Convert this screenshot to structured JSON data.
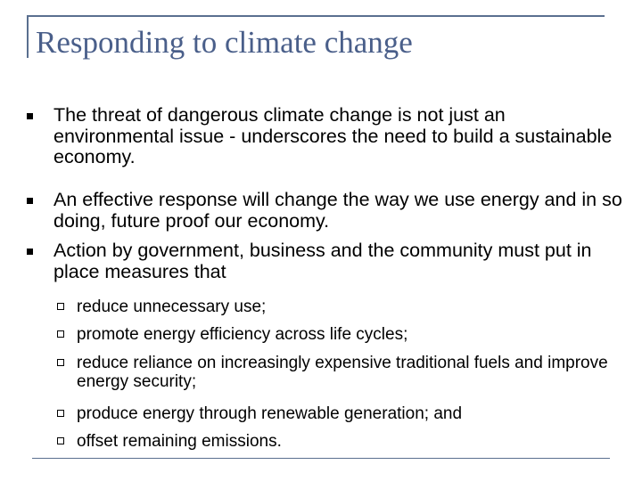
{
  "slide": {
    "title": "Responding to climate change",
    "bullets": [
      "The threat of dangerous climate change is not just an environmental issue - underscores the need to build a sustainable economy.",
      "An effective response will change the way we use energy and in so doing, future proof our economy.",
      "Action by government, business and the community must put in place measures that"
    ],
    "sub_bullets": [
      "reduce unnecessary use;",
      "promote energy efficiency across life cycles;",
      "reduce reliance on increasingly expensive traditional fuels and improve energy security;",
      "produce energy through renewable generation; and",
      "offset remaining emissions."
    ]
  }
}
